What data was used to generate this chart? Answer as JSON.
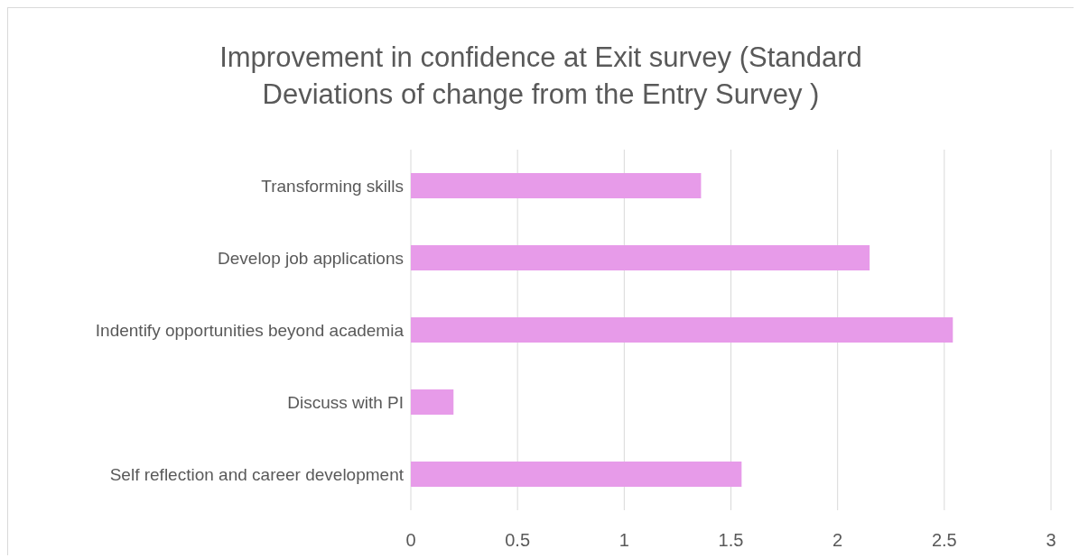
{
  "chart_data": {
    "type": "bar",
    "orientation": "horizontal",
    "title": "Improvement in confidence at Exit survey (Standard Deviations of change from the Entry Survey )",
    "categories": [
      "Transforming skills",
      "Develop job applications",
      "Indentify opportunities beyond academia",
      "Discuss with PI",
      "Self reflection and career development"
    ],
    "values": [
      1.36,
      2.15,
      2.54,
      0.2,
      1.55
    ],
    "color": "#e79be9",
    "xlim": [
      0,
      3
    ],
    "xticks": [
      0,
      0.5,
      1,
      1.5,
      2,
      2.5,
      3
    ],
    "grid": "x"
  }
}
